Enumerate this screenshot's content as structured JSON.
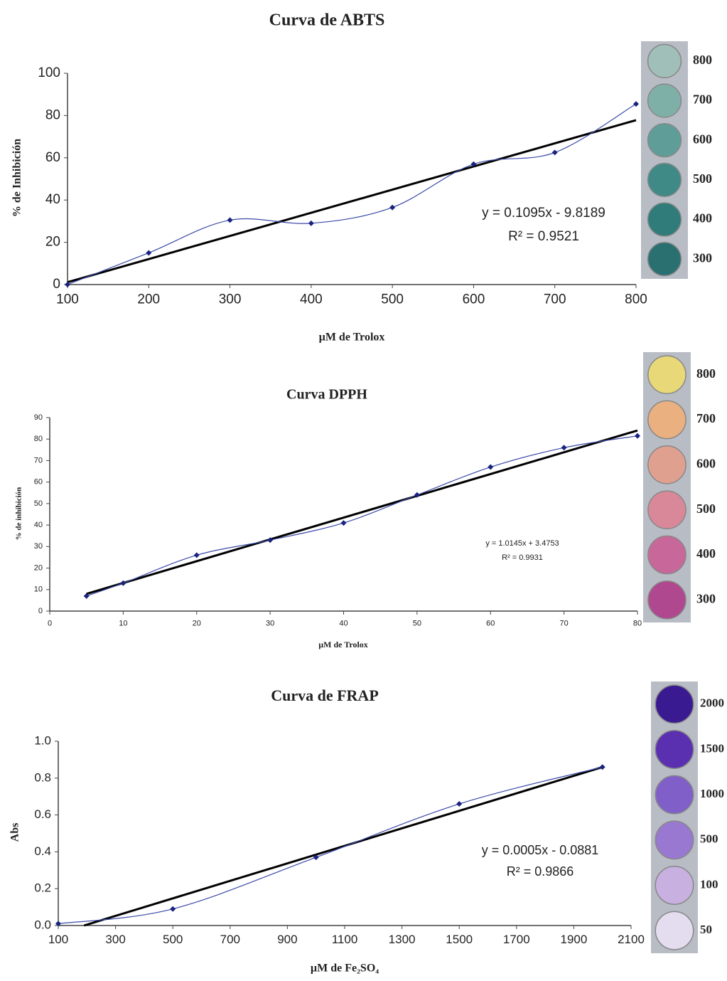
{
  "chart_data": [
    {
      "type": "line",
      "title": "Curva de ABTS",
      "x_label": "µM de Trolox",
      "y_label": "% de Inhibición",
      "x": [
        100,
        200,
        300,
        400,
        500,
        600,
        700,
        800
      ],
      "series": [
        {
          "color": "#3a4aa8",
          "values": [
            0,
            15,
            30.5,
            29,
            36.5,
            57,
            62.5,
            85.5
          ]
        }
      ],
      "trendline": {
        "color": "#000000",
        "x": [
          100,
          800
        ],
        "values": [
          1.1,
          77.8
        ]
      },
      "annotations": [
        "y = 0.1095x - 9.8189",
        "R² = 0.9521"
      ],
      "xlim": [
        100,
        800
      ],
      "ylim": [
        0,
        100
      ],
      "xticks": [
        100,
        200,
        300,
        400,
        500,
        600,
        700,
        800
      ],
      "yticks": [
        0,
        20,
        40,
        60,
        80,
        100
      ],
      "wells": [
        {
          "label": "800",
          "color": "#9fbfb8"
        },
        {
          "label": "700",
          "color": "#7fb0a8"
        },
        {
          "label": "600",
          "color": "#5f9e98"
        },
        {
          "label": "500",
          "color": "#3f8a86"
        },
        {
          "label": "400",
          "color": "#2f7c7a"
        },
        {
          "label": "300",
          "color": "#2a7070"
        }
      ]
    },
    {
      "type": "line",
      "title": "Curva DPPH",
      "x_label": "µM de Trolox",
      "y_label": "% de inhibición",
      "x": [
        5,
        10,
        20,
        30,
        40,
        50,
        60,
        70,
        80
      ],
      "series": [
        {
          "color": "#3a4aa8",
          "values": [
            7,
            13,
            26,
            33,
            41,
            54,
            67,
            76,
            81.5
          ]
        }
      ],
      "trendline": {
        "color": "#000000",
        "x": [
          5,
          80
        ],
        "values": [
          8,
          84
        ]
      },
      "annotations": [
        "y = 1.0145x + 3.4753",
        "R² = 0.9931"
      ],
      "xlim": [
        0,
        80
      ],
      "ylim": [
        0,
        90
      ],
      "xticks": [
        0,
        10,
        20,
        30,
        40,
        50,
        60,
        70,
        80
      ],
      "yticks": [
        0,
        10,
        20,
        30,
        40,
        50,
        60,
        70,
        80,
        90
      ],
      "wells": [
        {
          "label": "800",
          "color": "#e8d878"
        },
        {
          "label": "700",
          "color": "#eab080"
        },
        {
          "label": "600",
          "color": "#e0a090"
        },
        {
          "label": "500",
          "color": "#d88898"
        },
        {
          "label": "400",
          "color": "#c8689a"
        },
        {
          "label": "300",
          "color": "#b04890"
        }
      ]
    },
    {
      "type": "line",
      "title": "Curva de FRAP",
      "x_label": "µM de Fe₂SO₄",
      "y_label": "Abs",
      "x": [
        100,
        500,
        1000,
        1500,
        2000
      ],
      "series": [
        {
          "color": "#3a4aa8",
          "values": [
            0.01,
            0.09,
            0.37,
            0.66,
            0.86
          ]
        }
      ],
      "trendline": {
        "color": "#000000",
        "x": [
          190,
          2000
        ],
        "values": [
          0,
          0.86
        ]
      },
      "annotations": [
        "y = 0.0005x - 0.0881",
        "R² = 0.9866"
      ],
      "xlim": [
        100,
        2100
      ],
      "ylim": [
        0,
        1
      ],
      "xticks": [
        100,
        300,
        500,
        700,
        900,
        1100,
        1300,
        1500,
        1700,
        1900,
        2100
      ],
      "yticks": [
        {
          "value": 0,
          "label": "0.0"
        },
        0.2,
        0.4,
        0.6,
        0.8,
        {
          "value": 1,
          "label": "1.0"
        }
      ],
      "wells": [
        {
          "label": "2000",
          "color": "#3a1a90"
        },
        {
          "label": "1500",
          "color": "#5a30b0"
        },
        {
          "label": "1000",
          "color": "#8060c8"
        },
        {
          "label": "500",
          "color": "#9878d0"
        },
        {
          "label": "100",
          "color": "#c8b0e0"
        },
        {
          "label": "50",
          "color": "#e4dcef"
        }
      ]
    }
  ]
}
